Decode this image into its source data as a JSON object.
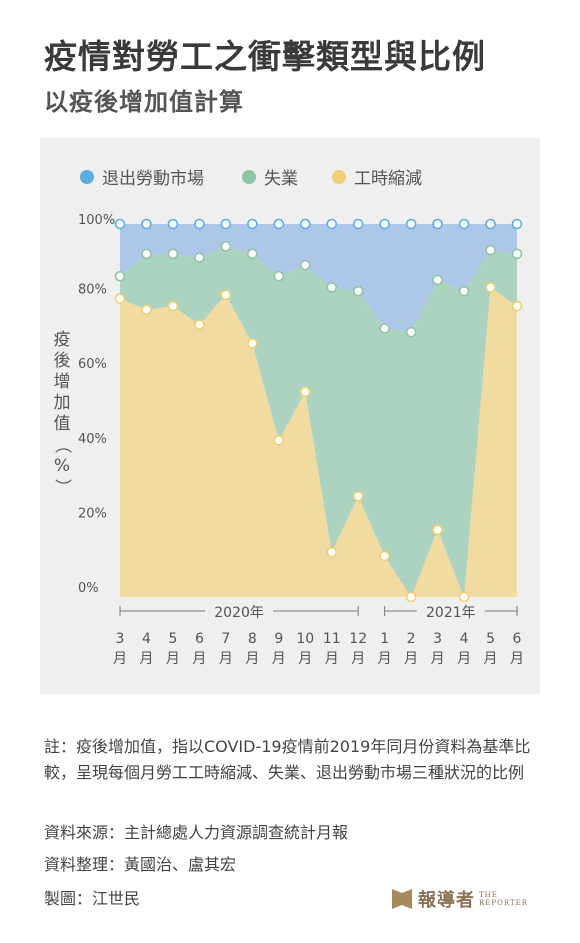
{
  "title": "疫情對勞工之衝擊類型與比例",
  "subtitle": "以疫後增加值計算",
  "legend": [
    {
      "label": "退出勞動市場",
      "color": "#5aaee0"
    },
    {
      "label": "失業",
      "color": "#8fc3a5"
    },
    {
      "label": "工時縮減",
      "color": "#efcf73"
    }
  ],
  "chart_data": {
    "type": "area",
    "stacked": true,
    "normalized": true,
    "ylabel": "疫後增加值（%）",
    "yticks": [
      "0%",
      "20%",
      "40%",
      "60%",
      "80%",
      "100%"
    ],
    "ylim": [
      0,
      100
    ],
    "x": [
      "3月",
      "4月",
      "5月",
      "6月",
      "7月",
      "8月",
      "9月",
      "10月",
      "11月",
      "12月",
      "1月",
      "2月",
      "3月",
      "4月",
      "5月",
      "6月"
    ],
    "year_groups": [
      {
        "label": "2020年",
        "from": 0,
        "to": 9
      },
      {
        "label": "2021年",
        "from": 10,
        "to": 15
      }
    ],
    "series": [
      {
        "name": "工時縮減",
        "values": [
          80,
          77,
          78,
          73,
          81,
          68,
          42,
          55,
          12,
          27,
          11,
          0,
          18,
          0,
          83,
          78
        ],
        "color": "#f2dba1",
        "line": "#efcf73"
      },
      {
        "name": "失業",
        "values": [
          6,
          15,
          14,
          18,
          13,
          24,
          44,
          34,
          71,
          55,
          61,
          71,
          67,
          82,
          10,
          14
        ],
        "color": "#acd3bf",
        "line": "#8fc3a5"
      },
      {
        "name": "退出勞動市場",
        "values": [
          14,
          8,
          8,
          9,
          6,
          8,
          14,
          11,
          17,
          18,
          28,
          29,
          15,
          18,
          7,
          8
        ],
        "color": "#aec6e8",
        "line": "#5aaee0"
      }
    ],
    "grid": false,
    "legend_position": "top"
  },
  "notes": {
    "note": "註：疫後增加值，指以COVID-19疫情前2019年同月份資料為基準比較，呈現每個月勞工工時縮減、失業、退出勞動市場三種狀況的比例",
    "source": "資料來源：主計總處人力資源調查統計月報",
    "compiled": "資料整理：黃國治、盧其宏",
    "designer": "製圖：江世民"
  },
  "logo": {
    "cn": "報導者",
    "en1": "THE",
    "en2": "REPORTER"
  }
}
